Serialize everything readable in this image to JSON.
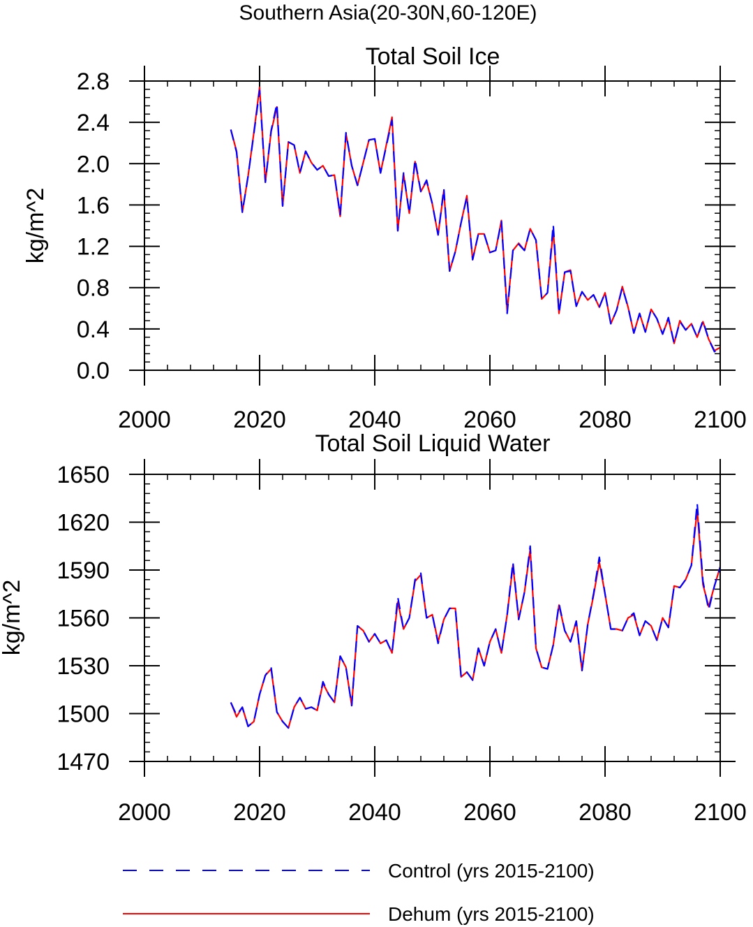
{
  "figure": {
    "suptitle": "Southern Asia(20-30N,60-120E)"
  },
  "legend": [
    {
      "label": "Control (yrs 2015-2100)",
      "color": "#0000ff",
      "style": "dashed"
    },
    {
      "label": "Dehum (yrs 2015-2100)",
      "color": "#ff0000",
      "style": "solid"
    }
  ],
  "chart_data": [
    {
      "type": "line",
      "title": "Total Soil Ice",
      "xlabel": "",
      "ylabel": "kg/m^2",
      "xlim": [
        2000,
        2100
      ],
      "ylim": [
        0.0,
        2.8
      ],
      "xticks": [
        2000,
        2020,
        2040,
        2060,
        2080,
        2100
      ],
      "yticks": [
        0.0,
        0.4,
        0.8,
        1.2,
        1.6,
        2.0,
        2.4,
        2.8
      ],
      "ytick_labels": [
        "0.0",
        "0.4",
        "0.8",
        "1.2",
        "1.6",
        "2.0",
        "2.4",
        "2.8"
      ],
      "x": [
        2015,
        2016,
        2017,
        2018,
        2019,
        2020,
        2021,
        2022,
        2023,
        2024,
        2025,
        2026,
        2027,
        2028,
        2029,
        2030,
        2031,
        2032,
        2033,
        2034,
        2035,
        2036,
        2037,
        2038,
        2039,
        2040,
        2041,
        2042,
        2043,
        2044,
        2045,
        2046,
        2047,
        2048,
        2049,
        2050,
        2051,
        2052,
        2053,
        2054,
        2055,
        2056,
        2057,
        2058,
        2059,
        2060,
        2061,
        2062,
        2063,
        2064,
        2065,
        2066,
        2067,
        2068,
        2069,
        2070,
        2071,
        2072,
        2073,
        2074,
        2075,
        2076,
        2077,
        2078,
        2079,
        2080,
        2081,
        2082,
        2083,
        2084,
        2085,
        2086,
        2087,
        2088,
        2089,
        2090,
        2091,
        2092,
        2093,
        2094,
        2095,
        2096,
        2097,
        2098,
        2099,
        2100
      ],
      "series": [
        {
          "name": "Control (yrs 2015-2100)",
          "color": "#0000ff",
          "values": [
            2.33,
            2.11,
            1.53,
            1.88,
            2.29,
            2.71,
            1.82,
            2.32,
            2.58,
            1.59,
            2.21,
            2.18,
            1.91,
            2.12,
            2.01,
            1.94,
            1.98,
            1.88,
            1.89,
            1.5,
            2.3,
            1.98,
            1.79,
            2.01,
            2.23,
            2.24,
            1.91,
            2.17,
            2.42,
            1.35,
            1.91,
            1.52,
            2.04,
            1.73,
            1.84,
            1.61,
            1.31,
            1.76,
            0.96,
            1.15,
            1.43,
            1.68,
            1.07,
            1.32,
            1.32,
            1.14,
            1.16,
            1.44,
            0.55,
            1.16,
            1.22,
            1.16,
            1.37,
            1.26,
            0.69,
            0.75,
            1.41,
            0.55,
            0.95,
            0.96,
            0.62,
            0.76,
            0.68,
            0.73,
            0.61,
            0.75,
            0.45,
            0.58,
            0.8,
            0.61,
            0.36,
            0.55,
            0.37,
            0.59,
            0.5,
            0.35,
            0.51,
            0.26,
            0.47,
            0.39,
            0.45,
            0.32,
            0.48,
            0.3,
            0.18,
            0.22
          ]
        },
        {
          "name": "Dehum (yrs 2015-2100)",
          "color": "#ff0000",
          "values": [
            2.33,
            2.12,
            1.53,
            1.88,
            2.3,
            2.74,
            1.82,
            2.31,
            2.55,
            1.59,
            2.21,
            2.18,
            1.91,
            2.12,
            2.01,
            1.94,
            1.98,
            1.88,
            1.89,
            1.49,
            2.29,
            1.98,
            1.79,
            2.01,
            2.23,
            2.24,
            1.91,
            2.18,
            2.45,
            1.35,
            1.9,
            1.52,
            2.02,
            1.73,
            1.83,
            1.61,
            1.31,
            1.74,
            0.96,
            1.15,
            1.43,
            1.69,
            1.07,
            1.32,
            1.32,
            1.14,
            1.16,
            1.45,
            0.57,
            1.16,
            1.23,
            1.16,
            1.37,
            1.26,
            0.69,
            0.75,
            1.36,
            0.55,
            0.95,
            0.97,
            0.62,
            0.76,
            0.68,
            0.73,
            0.61,
            0.75,
            0.45,
            0.58,
            0.81,
            0.61,
            0.36,
            0.55,
            0.37,
            0.59,
            0.5,
            0.35,
            0.5,
            0.26,
            0.48,
            0.39,
            0.45,
            0.32,
            0.47,
            0.3,
            0.19,
            0.22
          ]
        }
      ]
    },
    {
      "type": "line",
      "title": "Total Soil Liquid Water",
      "xlabel": "",
      "ylabel": "kg/m^2",
      "xlim": [
        2000,
        2100
      ],
      "ylim": [
        1470,
        1650
      ],
      "xticks": [
        2000,
        2020,
        2040,
        2060,
        2080,
        2100
      ],
      "yticks": [
        1470,
        1500,
        1530,
        1560,
        1590,
        1620,
        1650
      ],
      "ytick_labels": [
        "1470",
        "1500",
        "1530",
        "1560",
        "1590",
        "1620",
        "1650"
      ],
      "x": [
        2015,
        2016,
        2017,
        2018,
        2019,
        2020,
        2021,
        2022,
        2023,
        2024,
        2025,
        2026,
        2027,
        2028,
        2029,
        2030,
        2031,
        2032,
        2033,
        2034,
        2035,
        2036,
        2037,
        2038,
        2039,
        2040,
        2041,
        2042,
        2043,
        2044,
        2045,
        2046,
        2047,
        2048,
        2049,
        2050,
        2051,
        2052,
        2053,
        2054,
        2055,
        2056,
        2057,
        2058,
        2059,
        2060,
        2061,
        2062,
        2063,
        2064,
        2065,
        2066,
        2067,
        2068,
        2069,
        2070,
        2071,
        2072,
        2073,
        2074,
        2075,
        2076,
        2077,
        2078,
        2079,
        2080,
        2081,
        2082,
        2083,
        2084,
        2085,
        2086,
        2087,
        2088,
        2089,
        2090,
        2091,
        2092,
        2093,
        2094,
        2095,
        2096,
        2097,
        2098,
        2099,
        2100
      ],
      "series": [
        {
          "name": "Control (yrs 2015-2100)",
          "color": "#0000ff",
          "values": [
            1507,
            1499,
            1504,
            1492,
            1495,
            1512,
            1524,
            1529,
            1501,
            1495,
            1491,
            1504,
            1510,
            1503,
            1504,
            1502,
            1520,
            1512,
            1507,
            1536,
            1529,
            1505,
            1555,
            1552,
            1545,
            1550,
            1544,
            1546,
            1538,
            1573,
            1553,
            1560,
            1584,
            1588,
            1560,
            1562,
            1544,
            1559,
            1566,
            1566,
            1523,
            1526,
            1521,
            1541,
            1530,
            1545,
            1553,
            1538,
            1562,
            1595,
            1559,
            1576,
            1605,
            1541,
            1529,
            1528,
            1543,
            1569,
            1552,
            1545,
            1558,
            1527,
            1556,
            1575,
            1598,
            1575,
            1553,
            1553,
            1552,
            1560,
            1563,
            1549,
            1558,
            1555,
            1546,
            1560,
            1554,
            1580,
            1579,
            1584,
            1593,
            1632,
            1583,
            1565,
            1580,
            1592
          ]
        },
        {
          "name": "Dehum (yrs 2015-2100)",
          "color": "#ff0000",
          "values": [
            1507,
            1498,
            1504,
            1492,
            1495,
            1512,
            1524,
            1528,
            1501,
            1495,
            1491,
            1504,
            1510,
            1503,
            1504,
            1502,
            1519,
            1512,
            1507,
            1536,
            1529,
            1505,
            1555,
            1552,
            1545,
            1550,
            1544,
            1546,
            1538,
            1570,
            1553,
            1560,
            1583,
            1587,
            1560,
            1562,
            1545,
            1559,
            1566,
            1566,
            1523,
            1526,
            1521,
            1541,
            1530,
            1545,
            1553,
            1538,
            1562,
            1593,
            1559,
            1576,
            1603,
            1541,
            1529,
            1528,
            1543,
            1568,
            1552,
            1545,
            1558,
            1527,
            1556,
            1574,
            1595,
            1575,
            1553,
            1553,
            1552,
            1560,
            1562,
            1549,
            1558,
            1555,
            1546,
            1560,
            1554,
            1580,
            1579,
            1584,
            1593,
            1628,
            1581,
            1567,
            1580,
            1592
          ]
        }
      ]
    }
  ]
}
